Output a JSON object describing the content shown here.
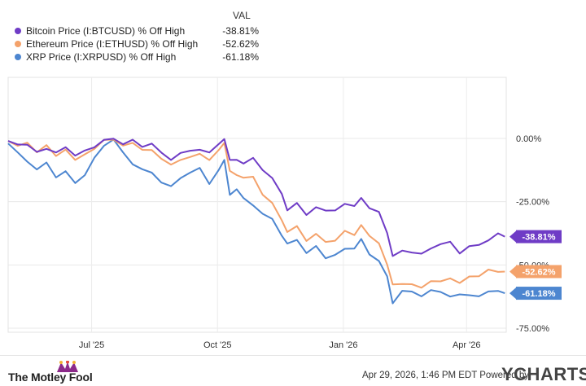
{
  "legend": {
    "header": "VAL"
  },
  "footer": {
    "brand": "The Motley Fool",
    "note": "Apr 29, 2026, 1:46 PM EDT Powered by",
    "logo": "YCHARTS"
  },
  "chart_data": {
    "type": "line",
    "x_range": [
      "2025-05-01",
      "2026-04-30"
    ],
    "ylim": [
      -75,
      0
    ],
    "yticks": [
      0,
      -25,
      -50,
      -75
    ],
    "ytick_labels": [
      "0.00%",
      "-25.00%",
      "-50.00%",
      "-75.00%"
    ],
    "xticks": [
      {
        "date": "2025-07-01",
        "label": "Jul '25"
      },
      {
        "date": "2025-10-01",
        "label": "Oct '25"
      },
      {
        "date": "2026-01-01",
        "label": "Jan '26"
      },
      {
        "date": "2026-04-01",
        "label": "Apr '26"
      }
    ],
    "grid": true,
    "legend_position": "top-left",
    "series": [
      {
        "name": "Bitcoin Price (I:BTCUSD) % Off High",
        "color": "#6f3cc6",
        "last_label": "-38.81%",
        "points": [
          [
            "2025-05-01",
            -1
          ],
          [
            "2025-05-08",
            -2
          ],
          [
            "2025-05-15",
            -3
          ],
          [
            "2025-05-22",
            -5
          ],
          [
            "2025-05-29",
            -4
          ],
          [
            "2025-06-05",
            -6
          ],
          [
            "2025-06-12",
            -3
          ],
          [
            "2025-06-19",
            -7
          ],
          [
            "2025-06-26",
            -5
          ],
          [
            "2025-07-03",
            -3
          ],
          [
            "2025-07-10",
            -1
          ],
          [
            "2025-07-17",
            0
          ],
          [
            "2025-07-24",
            -2
          ],
          [
            "2025-07-31",
            -1
          ],
          [
            "2025-08-07",
            -3
          ],
          [
            "2025-08-14",
            -2
          ],
          [
            "2025-08-21",
            -6
          ],
          [
            "2025-08-28",
            -8
          ],
          [
            "2025-09-04",
            -6
          ],
          [
            "2025-09-11",
            -5
          ],
          [
            "2025-09-18",
            -4
          ],
          [
            "2025-09-25",
            -6
          ],
          [
            "2025-10-02",
            -2
          ],
          [
            "2025-10-06",
            0
          ],
          [
            "2025-10-10",
            -9
          ],
          [
            "2025-10-15",
            -8
          ],
          [
            "2025-10-20",
            -10
          ],
          [
            "2025-10-27",
            -8
          ],
          [
            "2025-11-03",
            -12
          ],
          [
            "2025-11-10",
            -16
          ],
          [
            "2025-11-17",
            -22
          ],
          [
            "2025-11-21",
            -28
          ],
          [
            "2025-11-28",
            -26
          ],
          [
            "2025-12-05",
            -30
          ],
          [
            "2025-12-12",
            -27
          ],
          [
            "2025-12-19",
            -29
          ],
          [
            "2025-12-26",
            -28
          ],
          [
            "2026-01-02",
            -26
          ],
          [
            "2026-01-09",
            -27
          ],
          [
            "2026-01-14",
            -23
          ],
          [
            "2026-01-20",
            -28
          ],
          [
            "2026-01-27",
            -29
          ],
          [
            "2026-02-02",
            -37
          ],
          [
            "2026-02-06",
            -47
          ],
          [
            "2026-02-13",
            -44
          ],
          [
            "2026-02-20",
            -45
          ],
          [
            "2026-02-27",
            -46
          ],
          [
            "2026-03-06",
            -43
          ],
          [
            "2026-03-13",
            -42
          ],
          [
            "2026-03-20",
            -41
          ],
          [
            "2026-03-27",
            -45
          ],
          [
            "2026-04-03",
            -43
          ],
          [
            "2026-04-10",
            -42
          ],
          [
            "2026-04-17",
            -40
          ],
          [
            "2026-04-24",
            -38
          ],
          [
            "2026-04-29",
            -38.81
          ]
        ]
      },
      {
        "name": "Ethereum Price (I:ETHUSD) % Off High",
        "color": "#f4a26b",
        "last_label": "-52.62%",
        "points": [
          [
            "2025-05-01",
            -1
          ],
          [
            "2025-05-08",
            -3
          ],
          [
            "2025-05-15",
            -2
          ],
          [
            "2025-05-22",
            -5
          ],
          [
            "2025-05-29",
            -3
          ],
          [
            "2025-06-05",
            -7
          ],
          [
            "2025-06-12",
            -4
          ],
          [
            "2025-06-19",
            -9
          ],
          [
            "2025-06-26",
            -6
          ],
          [
            "2025-07-03",
            -4
          ],
          [
            "2025-07-10",
            -1
          ],
          [
            "2025-07-17",
            0
          ],
          [
            "2025-07-24",
            -3
          ],
          [
            "2025-07-31",
            -2
          ],
          [
            "2025-08-07",
            -4
          ],
          [
            "2025-08-14",
            -5
          ],
          [
            "2025-08-21",
            -8
          ],
          [
            "2025-08-28",
            -10
          ],
          [
            "2025-09-04",
            -9
          ],
          [
            "2025-09-11",
            -7
          ],
          [
            "2025-09-18",
            -6
          ],
          [
            "2025-09-25",
            -9
          ],
          [
            "2025-10-02",
            -4
          ],
          [
            "2025-10-06",
            -2
          ],
          [
            "2025-10-10",
            -13
          ],
          [
            "2025-10-15",
            -14
          ],
          [
            "2025-10-20",
            -16
          ],
          [
            "2025-10-27",
            -15
          ],
          [
            "2025-11-03",
            -22
          ],
          [
            "2025-11-10",
            -26
          ],
          [
            "2025-11-17",
            -32
          ],
          [
            "2025-11-21",
            -37
          ],
          [
            "2025-11-28",
            -35
          ],
          [
            "2025-12-05",
            -40
          ],
          [
            "2025-12-12",
            -38
          ],
          [
            "2025-12-19",
            -41
          ],
          [
            "2025-12-26",
            -40
          ],
          [
            "2026-01-02",
            -37
          ],
          [
            "2026-01-09",
            -38
          ],
          [
            "2026-01-14",
            -34
          ],
          [
            "2026-01-20",
            -39
          ],
          [
            "2026-01-27",
            -41
          ],
          [
            "2026-02-02",
            -50
          ],
          [
            "2026-02-06",
            -58
          ],
          [
            "2026-02-13",
            -57
          ],
          [
            "2026-02-20",
            -58
          ],
          [
            "2026-02-27",
            -59
          ],
          [
            "2026-03-06",
            -56
          ],
          [
            "2026-03-13",
            -57
          ],
          [
            "2026-03-20",
            -55
          ],
          [
            "2026-03-27",
            -57
          ],
          [
            "2026-04-03",
            -55
          ],
          [
            "2026-04-10",
            -54
          ],
          [
            "2026-04-17",
            -52
          ],
          [
            "2026-04-24",
            -53
          ],
          [
            "2026-04-29",
            -52.62
          ]
        ]
      },
      {
        "name": "XRP Price (I:XRPUSD) % Off High",
        "color": "#4d86d0",
        "last_label": "-61.18%",
        "points": [
          [
            "2025-05-01",
            -2
          ],
          [
            "2025-05-08",
            -6
          ],
          [
            "2025-05-15",
            -9
          ],
          [
            "2025-05-22",
            -12
          ],
          [
            "2025-05-29",
            -10
          ],
          [
            "2025-06-05",
            -15
          ],
          [
            "2025-06-12",
            -13
          ],
          [
            "2025-06-19",
            -18
          ],
          [
            "2025-06-26",
            -14
          ],
          [
            "2025-07-03",
            -8
          ],
          [
            "2025-07-10",
            -3
          ],
          [
            "2025-07-17",
            0
          ],
          [
            "2025-07-24",
            -6
          ],
          [
            "2025-07-31",
            -10
          ],
          [
            "2025-08-07",
            -12
          ],
          [
            "2025-08-14",
            -14
          ],
          [
            "2025-08-21",
            -17
          ],
          [
            "2025-08-28",
            -19
          ],
          [
            "2025-09-04",
            -16
          ],
          [
            "2025-09-11",
            -13
          ],
          [
            "2025-09-18",
            -12
          ],
          [
            "2025-09-25",
            -18
          ],
          [
            "2025-10-02",
            -12
          ],
          [
            "2025-10-06",
            -9
          ],
          [
            "2025-10-10",
            -22
          ],
          [
            "2025-10-15",
            -20
          ],
          [
            "2025-10-20",
            -24
          ],
          [
            "2025-10-27",
            -26
          ],
          [
            "2025-11-03",
            -30
          ],
          [
            "2025-11-10",
            -32
          ],
          [
            "2025-11-17",
            -38
          ],
          [
            "2025-11-21",
            -42
          ],
          [
            "2025-11-28",
            -40
          ],
          [
            "2025-12-05",
            -45
          ],
          [
            "2025-12-12",
            -43
          ],
          [
            "2025-12-19",
            -47
          ],
          [
            "2025-12-26",
            -46
          ],
          [
            "2026-01-02",
            -44
          ],
          [
            "2026-01-09",
            -43
          ],
          [
            "2026-01-14",
            -40
          ],
          [
            "2026-01-20",
            -46
          ],
          [
            "2026-01-27",
            -48
          ],
          [
            "2026-02-02",
            -55
          ],
          [
            "2026-02-06",
            -65
          ],
          [
            "2026-02-13",
            -60
          ],
          [
            "2026-02-20",
            -61
          ],
          [
            "2026-02-27",
            -62
          ],
          [
            "2026-03-06",
            -60
          ],
          [
            "2026-03-13",
            -61
          ],
          [
            "2026-03-20",
            -62
          ],
          [
            "2026-03-27",
            -62
          ],
          [
            "2026-04-03",
            -62
          ],
          [
            "2026-04-10",
            -62
          ],
          [
            "2026-04-17",
            -61
          ],
          [
            "2026-04-24",
            -60
          ],
          [
            "2026-04-29",
            -61.18
          ]
        ]
      }
    ]
  }
}
